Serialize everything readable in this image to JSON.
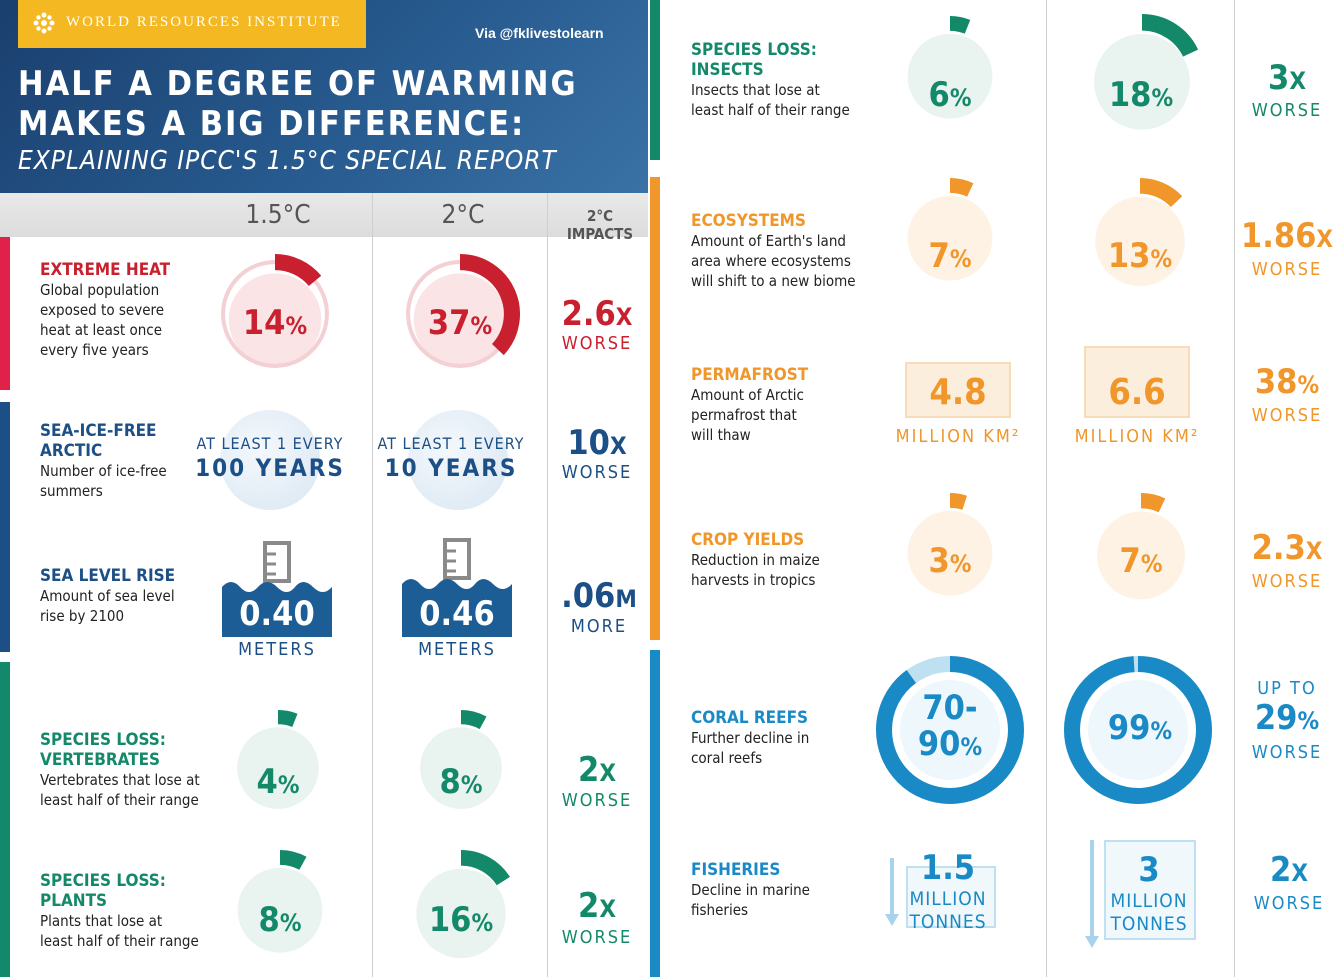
{
  "header": {
    "org": "WORLD RESOURCES INSTITUTE",
    "via": "Via @fklivestolearn",
    "title_line1": "HALF A DEGREE OF WARMING",
    "title_line2": "MAKES A BIG DIFFERENCE:",
    "subtitle": "EXPLAINING IPCC'S 1.5°C SPECIAL REPORT"
  },
  "columns": {
    "c15": "1.5°C",
    "c2": "2°C",
    "impacts": "2°C IMPACTS"
  },
  "colors": {
    "red": "#c8202e",
    "navy": "#1b4f86",
    "green": "#14896a",
    "orange": "#f0962a",
    "blue": "#1a8ac6"
  },
  "rows": {
    "heat": {
      "title": "EXTREME HEAT",
      "desc": [
        "Global population",
        "exposed to severe",
        "heat at least once",
        "every five years"
      ],
      "v15": "14",
      "v2": "37",
      "pct": "%",
      "frac15": 0.14,
      "frac2": 0.37,
      "impact": "2.6",
      "impact_x": "X",
      "impact_lbl": "WORSE",
      "icon": "globe-icon"
    },
    "seaice": {
      "title": [
        "SEA-ICE-FREE",
        "ARCTIC"
      ],
      "desc": [
        "Number of ice-free",
        "summers"
      ],
      "atleast": "AT LEAST 1 EVERY",
      "y15": "100 YEARS",
      "y2": "10 YEARS",
      "impact": "10",
      "impact_x": "X",
      "impact_lbl": "WORSE",
      "icon": "globe-icon"
    },
    "sealevel": {
      "title": "SEA LEVEL RISE",
      "desc": [
        "Amount of sea level",
        "rise by 2100"
      ],
      "v15": "0.40",
      "v2": "0.46",
      "unit": "METERS",
      "impact": ".06",
      "impact_x": "M",
      "impact_lbl": "MORE",
      "icon": "gauge-icon"
    },
    "vertebrates": {
      "title": [
        "SPECIES LOSS:",
        "VERTEBRATES"
      ],
      "desc": [
        "Vertebrates that lose at",
        "least half of their range"
      ],
      "v15": "4",
      "v2": "8",
      "pct": "%",
      "frac15": 0.04,
      "frac2": 0.08,
      "impact": "2",
      "impact_x": "X",
      "impact_lbl": "WORSE",
      "icon": "monkey-icon"
    },
    "plants": {
      "title": [
        "SPECIES LOSS:",
        "PLANTS"
      ],
      "desc": [
        "Plants that lose at",
        "least half of their range"
      ],
      "v15": "8",
      "v2": "16",
      "pct": "%",
      "frac15": 0.08,
      "frac2": 0.16,
      "impact": "2",
      "impact_x": "X",
      "impact_lbl": "WORSE",
      "icon": "tree-icon"
    },
    "insects": {
      "title": [
        "SPECIES LOSS:",
        "INSECTS"
      ],
      "desc": [
        "Insects that lose at",
        "least half of their range"
      ],
      "v15": "6",
      "v2": "18",
      "pct": "%",
      "frac15": 0.06,
      "frac2": 0.18,
      "impact": "3",
      "impact_x": "X",
      "impact_lbl": "WORSE",
      "icon": "beetle-icon"
    },
    "ecosystems": {
      "title": "ECOSYSTEMS",
      "desc": [
        "Amount of Earth's land",
        "area where ecosystems",
        "will shift to a new biome"
      ],
      "v15": "7",
      "v2": "13",
      "pct": "%",
      "frac15": 0.07,
      "frac2": 0.13,
      "impact": "1.86",
      "impact_x": "X",
      "impact_lbl": "WORSE",
      "icon": "biome-icon"
    },
    "permafrost": {
      "title": "PERMAFROST",
      "desc": [
        "Amount of Arctic",
        "permafrost that",
        "will thaw"
      ],
      "v15": "4.8",
      "v2": "6.6",
      "unit": "MILLION KM²",
      "impact": "38",
      "impact_x": "%",
      "impact_lbl": "WORSE",
      "icon": "soil-icon"
    },
    "crops": {
      "title": "CROP YIELDS",
      "desc": [
        "Reduction in maize",
        "harvests in tropics"
      ],
      "v15": "3",
      "v2": "7",
      "pct": "%",
      "frac15": 0.03,
      "frac2": 0.07,
      "impact": "2.3",
      "impact_x": "X",
      "impact_lbl": "WORSE",
      "icon": "maize-icon"
    },
    "coral": {
      "title": "CORAL REEFS",
      "desc": [
        "Further decline in",
        "coral reefs"
      ],
      "v15a": "70-",
      "v15b": "90",
      "v2": "99",
      "pct": "%",
      "frac15": 0.9,
      "frac2": 0.99,
      "impact_pre": "UP TO",
      "impact": "29",
      "impact_x": "%",
      "impact_lbl": "WORSE",
      "icon": "coral-icon"
    },
    "fisheries": {
      "title": "FISHERIES",
      "desc": [
        "Decline in marine",
        "fisheries"
      ],
      "v15": "1.5",
      "v2": "3",
      "unit1": "MILLION",
      "unit2": "TONNES",
      "impact": "2",
      "impact_x": "X",
      "impact_lbl": "WORSE",
      "icon": "fish-icon"
    }
  }
}
